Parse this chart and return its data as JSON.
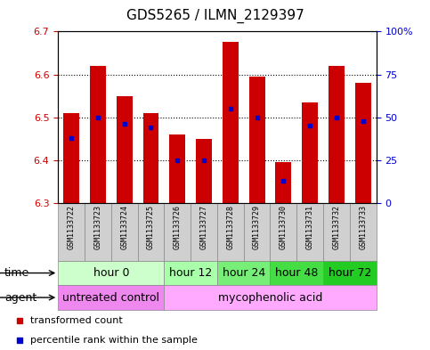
{
  "title": "GDS5265 / ILMN_2129397",
  "samples": [
    "GSM1133722",
    "GSM1133723",
    "GSM1133724",
    "GSM1133725",
    "GSM1133726",
    "GSM1133727",
    "GSM1133728",
    "GSM1133729",
    "GSM1133730",
    "GSM1133731",
    "GSM1133732",
    "GSM1133733"
  ],
  "transformed_count": [
    6.51,
    6.62,
    6.55,
    6.51,
    6.46,
    6.45,
    6.675,
    6.595,
    6.395,
    6.535,
    6.62,
    6.58
  ],
  "bar_bottom": 6.3,
  "percentile_rank_pct": [
    38,
    50,
    46,
    44,
    25,
    25,
    55,
    50,
    13,
    45,
    50,
    48
  ],
  "ylim_left": [
    6.3,
    6.7
  ],
  "ylim_right": [
    0,
    100
  ],
  "yticks_left": [
    6.3,
    6.4,
    6.5,
    6.6,
    6.7
  ],
  "yticks_right": [
    0,
    25,
    50,
    75,
    100
  ],
  "ytick_labels_right": [
    "0",
    "25",
    "50",
    "75",
    "100%"
  ],
  "bar_color": "#cc0000",
  "percentile_color": "#0000cc",
  "time_groups": [
    {
      "label": "hour 0",
      "start": 0,
      "end": 4,
      "color": "#ccffcc"
    },
    {
      "label": "hour 12",
      "start": 4,
      "end": 6,
      "color": "#aaffaa"
    },
    {
      "label": "hour 24",
      "start": 6,
      "end": 8,
      "color": "#77ee77"
    },
    {
      "label": "hour 48",
      "start": 8,
      "end": 10,
      "color": "#44dd44"
    },
    {
      "label": "hour 72",
      "start": 10,
      "end": 12,
      "color": "#22cc22"
    }
  ],
  "agent_groups": [
    {
      "label": "untreated control",
      "start": 0,
      "end": 4,
      "color": "#ee88ee"
    },
    {
      "label": "mycophenolic acid",
      "start": 4,
      "end": 12,
      "color": "#ffaaff"
    }
  ],
  "legend_items": [
    {
      "label": "transformed count",
      "color": "#cc0000"
    },
    {
      "label": "percentile rank within the sample",
      "color": "#0000cc"
    }
  ],
  "left_tick_color": "#cc0000",
  "right_tick_color": "#0000cc",
  "title_fontsize": 11,
  "tick_fontsize": 8,
  "sample_fontsize": 6,
  "group_fontsize": 9
}
